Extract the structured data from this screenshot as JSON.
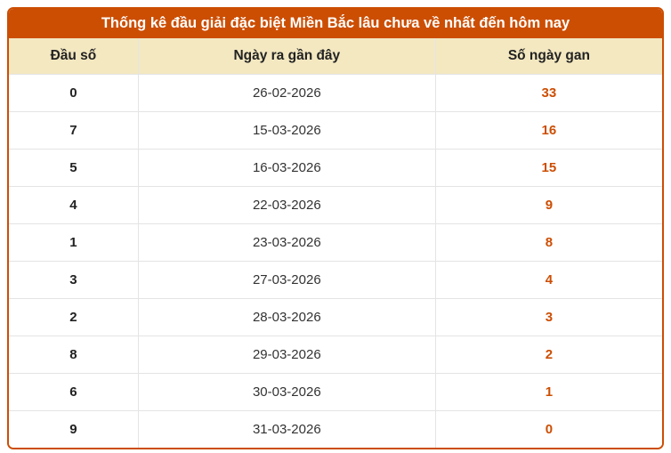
{
  "panel": {
    "title": "Thống kê đầu giải đặc biệt Miền Bắc lâu chưa về nhất đến hôm nay"
  },
  "colors": {
    "accent_orange": "#cc4e03",
    "header_cream": "#f4e8c1",
    "row_divider": "#e4e4e4",
    "text_dark": "#222222",
    "gap_number_orange": "#cc4e03",
    "title_text": "#ffffff"
  },
  "table": {
    "columns": [
      {
        "key": "dau_so",
        "label": "Đầu số"
      },
      {
        "key": "ngay_ra_gan_day",
        "label": "Ngày ra gần đây"
      },
      {
        "key": "so_ngay_gan",
        "label": "Số ngày gan"
      }
    ],
    "rows": [
      {
        "dau_so": "0",
        "ngay_ra_gan_day": "26-02-2026",
        "so_ngay_gan": "33"
      },
      {
        "dau_so": "7",
        "ngay_ra_gan_day": "15-03-2026",
        "so_ngay_gan": "16"
      },
      {
        "dau_so": "5",
        "ngay_ra_gan_day": "16-03-2026",
        "so_ngay_gan": "15"
      },
      {
        "dau_so": "4",
        "ngay_ra_gan_day": "22-03-2026",
        "so_ngay_gan": "9"
      },
      {
        "dau_so": "1",
        "ngay_ra_gan_day": "23-03-2026",
        "so_ngay_gan": "8"
      },
      {
        "dau_so": "3",
        "ngay_ra_gan_day": "27-03-2026",
        "so_ngay_gan": "4"
      },
      {
        "dau_so": "2",
        "ngay_ra_gan_day": "28-03-2026",
        "so_ngay_gan": "3"
      },
      {
        "dau_so": "8",
        "ngay_ra_gan_day": "29-03-2026",
        "so_ngay_gan": "2"
      },
      {
        "dau_so": "6",
        "ngay_ra_gan_day": "30-03-2026",
        "so_ngay_gan": "1"
      },
      {
        "dau_so": "9",
        "ngay_ra_gan_day": "31-03-2026",
        "so_ngay_gan": "0"
      }
    ]
  }
}
